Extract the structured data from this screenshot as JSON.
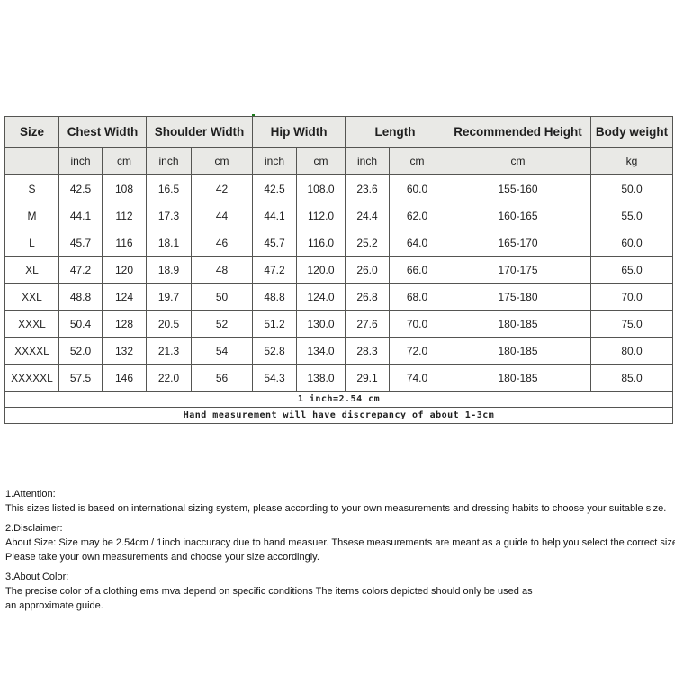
{
  "size_chart": {
    "type": "table",
    "header_groups": [
      {
        "label": "Size",
        "colspan": 1
      },
      {
        "label": "Chest Width",
        "colspan": 2
      },
      {
        "label": "Shoulder Width",
        "colspan": 2
      },
      {
        "label": "Hip Width",
        "colspan": 2
      },
      {
        "label": "Length",
        "colspan": 2
      },
      {
        "label": "Recommended Height",
        "colspan": 1
      },
      {
        "label": "Body weight",
        "colspan": 1
      }
    ],
    "unit_row": [
      "",
      "inch",
      "cm",
      "inch",
      "cm",
      "inch",
      "cm",
      "inch",
      "cm",
      "cm",
      "kg"
    ],
    "rows": [
      [
        "S",
        "42.5",
        "108",
        "16.5",
        "42",
        "42.5",
        "108.0",
        "23.6",
        "60.0",
        "155-160",
        "50.0"
      ],
      [
        "M",
        "44.1",
        "112",
        "17.3",
        "44",
        "44.1",
        "112.0",
        "24.4",
        "62.0",
        "160-165",
        "55.0"
      ],
      [
        "L",
        "45.7",
        "116",
        "18.1",
        "46",
        "45.7",
        "116.0",
        "25.2",
        "64.0",
        "165-170",
        "60.0"
      ],
      [
        "XL",
        "47.2",
        "120",
        "18.9",
        "48",
        "47.2",
        "120.0",
        "26.0",
        "66.0",
        "170-175",
        "65.0"
      ],
      [
        "XXL",
        "48.8",
        "124",
        "19.7",
        "50",
        "48.8",
        "124.0",
        "26.8",
        "68.0",
        "175-180",
        "70.0"
      ],
      [
        "XXXL",
        "50.4",
        "128",
        "20.5",
        "52",
        "51.2",
        "130.0",
        "27.6",
        "70.0",
        "180-185",
        "75.0"
      ],
      [
        "XXXXL",
        "52.0",
        "132",
        "21.3",
        "54",
        "52.8",
        "134.0",
        "28.3",
        "72.0",
        "180-185",
        "80.0"
      ],
      [
        "XXXXXL",
        "57.5",
        "146",
        "22.0",
        "56",
        "54.3",
        "138.0",
        "29.1",
        "74.0",
        "180-185",
        "85.0"
      ]
    ],
    "footnotes": [
      "1 inch=2.54 cm",
      "Hand measurement will have discrepancy of about 1-3cm"
    ],
    "colors": {
      "header_bg": "#e9e9e6",
      "border": "#555552",
      "text": "#1f1f1f",
      "artifact_green": "#1e7d1e"
    }
  },
  "notes": [
    {
      "heading": "1.Attention:",
      "lines": [
        "This sizes listed is based on international sizing system, please according to your own measurements and dressing habits to choose your suitable size."
      ]
    },
    {
      "heading": "2.Disclaimer:",
      "lines": [
        "About Size: Size may be 2.54cm / 1inch inaccuracy due to hand measuer. Thsese measurements are meant as a guide to help you select the correct size.",
        "Please take your own measurements and choose your size accordingly."
      ]
    },
    {
      "heading": "3.About Color:",
      "lines": [
        "The precise color of a clothing ems mva depend on specific conditions The items colors depicted should only be used as",
        "an approximate guide."
      ]
    }
  ]
}
